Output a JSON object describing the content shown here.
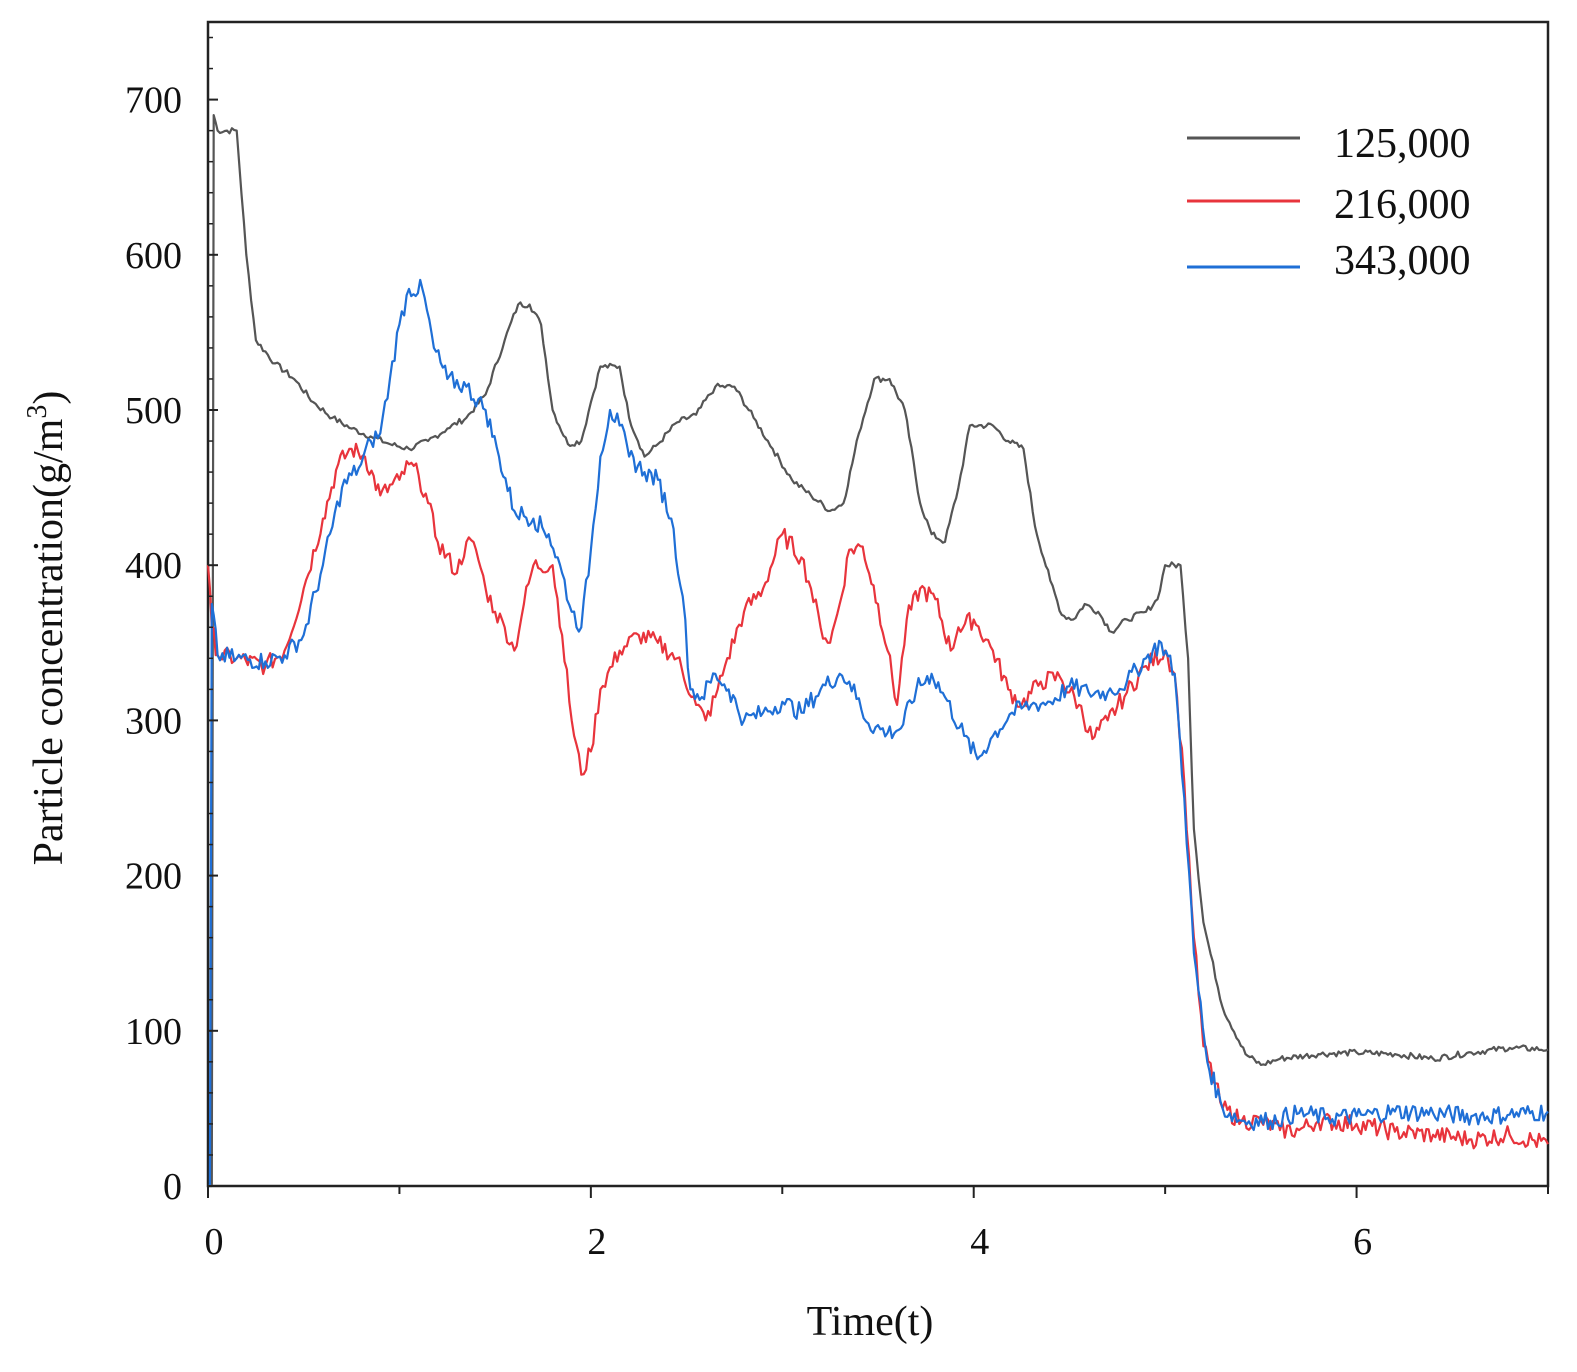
{
  "chart_data": {
    "type": "line",
    "title": "",
    "xlabel": "Time(t)",
    "ylabel_main": "Particle concentration(g/m",
    "ylabel_sup": "3",
    "ylabel_close": ")",
    "xlim": [
      0,
      7
    ],
    "ylim": [
      0,
      750
    ],
    "x_ticks": [
      0,
      2,
      4,
      6
    ],
    "x_tick_labels": [
      "0",
      "2",
      "4",
      "6"
    ],
    "x_minor_ticks": [
      1,
      3,
      5,
      7
    ],
    "y_ticks": [
      0,
      100,
      200,
      300,
      400,
      500,
      600,
      700
    ],
    "y_tick_labels": [
      "0",
      "100",
      "200",
      "300",
      "400",
      "500",
      "600",
      "700"
    ],
    "grid": false,
    "legend_position": "top-right",
    "series": [
      {
        "name": "125,000",
        "color": "#555555",
        "points": [
          [
            0,
            0
          ],
          [
            0.02,
            0
          ],
          [
            0.03,
            690
          ],
          [
            0.05,
            680
          ],
          [
            0.15,
            680
          ],
          [
            0.2,
            600
          ],
          [
            0.25,
            545
          ],
          [
            0.35,
            530
          ],
          [
            0.45,
            520
          ],
          [
            0.55,
            505
          ],
          [
            0.65,
            495
          ],
          [
            0.75,
            488
          ],
          [
            0.85,
            483
          ],
          [
            0.95,
            478
          ],
          [
            1.05,
            475
          ],
          [
            1.15,
            480
          ],
          [
            1.25,
            488
          ],
          [
            1.35,
            495
          ],
          [
            1.45,
            510
          ],
          [
            1.55,
            545
          ],
          [
            1.62,
            568
          ],
          [
            1.68,
            568
          ],
          [
            1.74,
            555
          ],
          [
            1.8,
            500
          ],
          [
            1.88,
            478
          ],
          [
            1.95,
            480
          ],
          [
            2.0,
            505
          ],
          [
            2.05,
            528
          ],
          [
            2.15,
            528
          ],
          [
            2.2,
            495
          ],
          [
            2.28,
            470
          ],
          [
            2.35,
            478
          ],
          [
            2.45,
            492
          ],
          [
            2.55,
            497
          ],
          [
            2.65,
            515
          ],
          [
            2.75,
            515
          ],
          [
            2.85,
            495
          ],
          [
            2.95,
            475
          ],
          [
            3.05,
            455
          ],
          [
            3.15,
            445
          ],
          [
            3.25,
            435
          ],
          [
            3.32,
            440
          ],
          [
            3.4,
            485
          ],
          [
            3.48,
            520
          ],
          [
            3.56,
            520
          ],
          [
            3.64,
            500
          ],
          [
            3.72,
            440
          ],
          [
            3.78,
            420
          ],
          [
            3.85,
            415
          ],
          [
            3.92,
            450
          ],
          [
            3.98,
            490
          ],
          [
            4.1,
            490
          ],
          [
            4.18,
            480
          ],
          [
            4.26,
            475
          ],
          [
            4.32,
            425
          ],
          [
            4.4,
            390
          ],
          [
            4.46,
            368
          ],
          [
            4.52,
            365
          ],
          [
            4.58,
            375
          ],
          [
            4.65,
            370
          ],
          [
            4.72,
            357
          ],
          [
            4.8,
            365
          ],
          [
            4.9,
            370
          ],
          [
            4.96,
            378
          ],
          [
            5.0,
            400
          ],
          [
            5.08,
            400
          ],
          [
            5.12,
            340
          ],
          [
            5.15,
            230
          ],
          [
            5.2,
            170
          ],
          [
            5.3,
            115
          ],
          [
            5.42,
            85
          ],
          [
            5.5,
            78
          ],
          [
            5.6,
            82
          ],
          [
            5.8,
            85
          ],
          [
            6.0,
            86
          ],
          [
            6.2,
            85
          ],
          [
            6.4,
            82
          ],
          [
            6.6,
            86
          ],
          [
            6.8,
            89
          ],
          [
            7.0,
            88
          ]
        ]
      },
      {
        "name": "216,000",
        "color": "#e8343c",
        "points": [
          [
            0,
            400
          ],
          [
            0.02,
            360
          ],
          [
            0.05,
            342
          ],
          [
            0.15,
            340
          ],
          [
            0.3,
            335
          ],
          [
            0.4,
            345
          ],
          [
            0.5,
            385
          ],
          [
            0.6,
            430
          ],
          [
            0.68,
            465
          ],
          [
            0.75,
            475
          ],
          [
            0.82,
            470
          ],
          [
            0.9,
            445
          ],
          [
            1.0,
            455
          ],
          [
            1.05,
            465
          ],
          [
            1.1,
            458
          ],
          [
            1.15,
            440
          ],
          [
            1.2,
            415
          ],
          [
            1.3,
            395
          ],
          [
            1.35,
            415
          ],
          [
            1.4,
            410
          ],
          [
            1.45,
            385
          ],
          [
            1.5,
            370
          ],
          [
            1.55,
            360
          ],
          [
            1.6,
            345
          ],
          [
            1.65,
            375
          ],
          [
            1.7,
            400
          ],
          [
            1.8,
            400
          ],
          [
            1.85,
            355
          ],
          [
            1.9,
            300
          ],
          [
            1.95,
            265
          ],
          [
            2.0,
            280
          ],
          [
            2.05,
            320
          ],
          [
            2.15,
            345
          ],
          [
            2.25,
            355
          ],
          [
            2.35,
            350
          ],
          [
            2.45,
            340
          ],
          [
            2.55,
            310
          ],
          [
            2.6,
            300
          ],
          [
            2.65,
            315
          ],
          [
            2.7,
            335
          ],
          [
            2.8,
            370
          ],
          [
            2.9,
            385
          ],
          [
            3.0,
            420
          ],
          [
            3.1,
            405
          ],
          [
            3.15,
            385
          ],
          [
            3.2,
            360
          ],
          [
            3.25,
            350
          ],
          [
            3.3,
            375
          ],
          [
            3.35,
            410
          ],
          [
            3.42,
            412
          ],
          [
            3.5,
            375
          ],
          [
            3.55,
            345
          ],
          [
            3.6,
            310
          ],
          [
            3.65,
            365
          ],
          [
            3.72,
            385
          ],
          [
            3.8,
            378
          ],
          [
            3.88,
            345
          ],
          [
            3.92,
            360
          ],
          [
            4.0,
            365
          ],
          [
            4.1,
            345
          ],
          [
            4.18,
            320
          ],
          [
            4.25,
            310
          ],
          [
            4.35,
            325
          ],
          [
            4.45,
            328
          ],
          [
            4.55,
            310
          ],
          [
            4.62,
            288
          ],
          [
            4.7,
            300
          ],
          [
            4.8,
            318
          ],
          [
            4.9,
            335
          ],
          [
            5.0,
            345
          ],
          [
            5.05,
            330
          ],
          [
            5.1,
            260
          ],
          [
            5.15,
            160
          ],
          [
            5.2,
            90
          ],
          [
            5.3,
            50
          ],
          [
            5.4,
            42
          ],
          [
            5.5,
            42
          ],
          [
            5.6,
            36
          ],
          [
            5.7,
            36
          ],
          [
            5.8,
            42
          ],
          [
            6.0,
            40
          ],
          [
            6.2,
            35
          ],
          [
            6.4,
            33
          ],
          [
            6.6,
            30
          ],
          [
            6.8,
            33
          ],
          [
            7.0,
            27
          ]
        ]
      },
      {
        "name": "343,000",
        "color": "#1f6fd6",
        "points": [
          [
            0,
            0
          ],
          [
            0.01,
            0
          ],
          [
            0.02,
            375
          ],
          [
            0.05,
            342
          ],
          [
            0.15,
            340
          ],
          [
            0.3,
            338
          ],
          [
            0.4,
            342
          ],
          [
            0.5,
            355
          ],
          [
            0.6,
            400
          ],
          [
            0.7,
            450
          ],
          [
            0.8,
            465
          ],
          [
            0.85,
            480
          ],
          [
            0.9,
            485
          ],
          [
            0.95,
            520
          ],
          [
            1.0,
            555
          ],
          [
            1.05,
            578
          ],
          [
            1.12,
            578
          ],
          [
            1.18,
            540
          ],
          [
            1.25,
            520
          ],
          [
            1.35,
            515
          ],
          [
            1.45,
            500
          ],
          [
            1.52,
            470
          ],
          [
            1.6,
            435
          ],
          [
            1.7,
            430
          ],
          [
            1.78,
            420
          ],
          [
            1.85,
            395
          ],
          [
            1.9,
            370
          ],
          [
            1.95,
            360
          ],
          [
            2.0,
            410
          ],
          [
            2.05,
            470
          ],
          [
            2.1,
            500
          ],
          [
            2.15,
            490
          ],
          [
            2.2,
            470
          ],
          [
            2.28,
            460
          ],
          [
            2.35,
            455
          ],
          [
            2.42,
            430
          ],
          [
            2.48,
            380
          ],
          [
            2.52,
            320
          ],
          [
            2.58,
            315
          ],
          [
            2.65,
            330
          ],
          [
            2.72,
            320
          ],
          [
            2.8,
            300
          ],
          [
            2.9,
            305
          ],
          [
            3.0,
            312
          ],
          [
            3.1,
            305
          ],
          [
            3.2,
            320
          ],
          [
            3.3,
            330
          ],
          [
            3.35,
            325
          ],
          [
            3.45,
            298
          ],
          [
            3.55,
            292
          ],
          [
            3.62,
            295
          ],
          [
            3.7,
            320
          ],
          [
            3.78,
            330
          ],
          [
            3.85,
            315
          ],
          [
            3.95,
            290
          ],
          [
            4.02,
            275
          ],
          [
            4.1,
            290
          ],
          [
            4.2,
            305
          ],
          [
            4.3,
            310
          ],
          [
            4.4,
            312
          ],
          [
            4.5,
            322
          ],
          [
            4.6,
            318
          ],
          [
            4.7,
            318
          ],
          [
            4.8,
            325
          ],
          [
            4.9,
            340
          ],
          [
            4.98,
            350
          ],
          [
            5.05,
            330
          ],
          [
            5.1,
            250
          ],
          [
            5.15,
            150
          ],
          [
            5.22,
            80
          ],
          [
            5.3,
            50
          ],
          [
            5.4,
            42
          ],
          [
            5.55,
            42
          ],
          [
            5.7,
            47
          ],
          [
            5.85,
            44
          ],
          [
            6.0,
            45
          ],
          [
            6.2,
            48
          ],
          [
            6.4,
            47
          ],
          [
            6.6,
            45
          ],
          [
            6.8,
            46
          ],
          [
            7.0,
            48
          ]
        ]
      }
    ]
  }
}
